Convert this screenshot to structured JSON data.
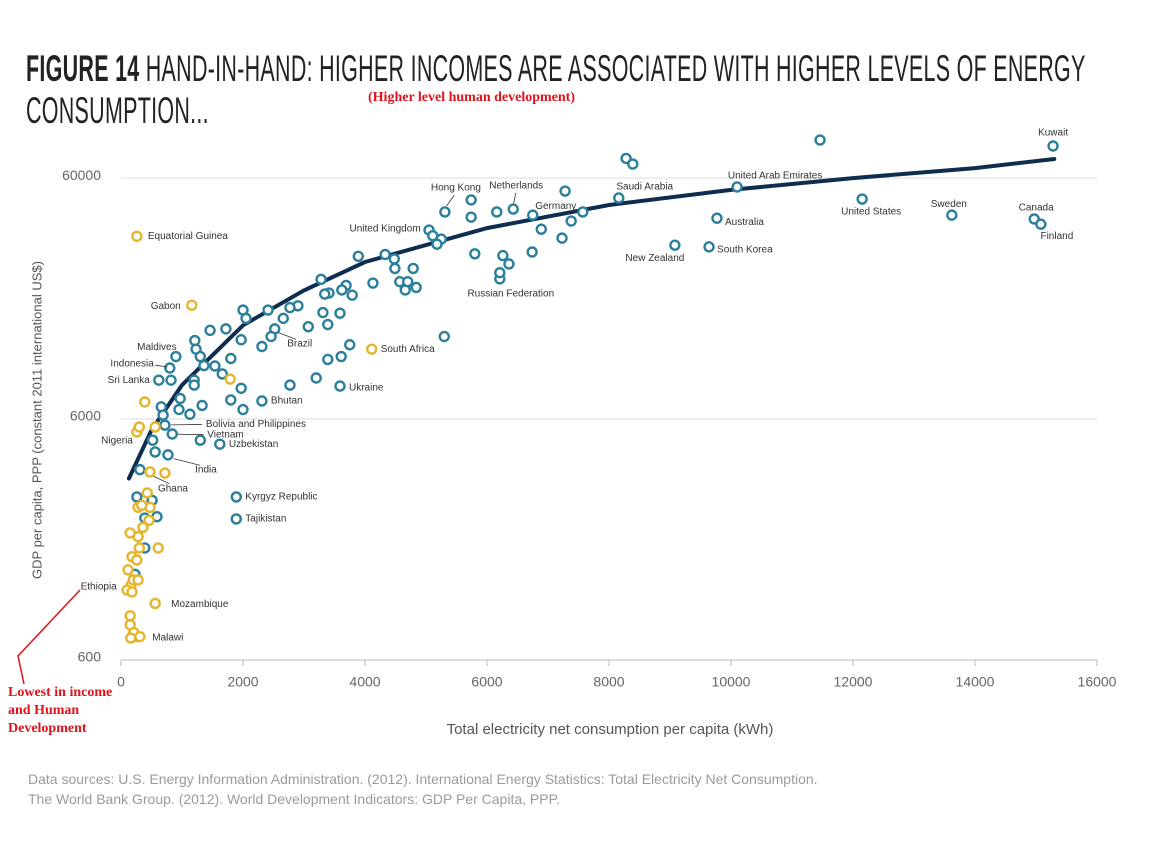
{
  "chart_data": {
    "type": "scatter",
    "figure_label": "FIGURE 14",
    "title": "HAND-IN-HAND: HIGHER INCOMES ARE ASSOCIATED WITH HIGHER LEVELS OF ENERGY CONSUMPTION...",
    "annotations": [
      "(Higher level human development)",
      "Lowest in income and Human Development"
    ],
    "x_label": "Total electricity net consumption per capita (kWh)",
    "y_label": "GDP per capita, PPP (constant 2011 international US$)",
    "sources": [
      "Data sources: U.S. Energy Information Administration. (2012). International Energy Statistics: Total Electricity Net Consumption.",
      "The World Bank Group. (2012). World Development Indicators: GDP Per Capita, PPP."
    ],
    "xlim": [
      0,
      16000
    ],
    "xticks": [
      0,
      2000,
      4000,
      6000,
      8000,
      10000,
      12000,
      14000,
      16000
    ],
    "ylim": [
      600,
      100000
    ],
    "yticks": [
      600,
      6000,
      60000
    ],
    "y_scale": "log",
    "grid": true,
    "series": [
      {
        "color": "#2b7f9b",
        "x": [
          15280,
          10100,
          8160,
          5310,
          6430,
          6750,
          12150,
          13620,
          14970,
          15080,
          9770,
          9080,
          9640,
          5050,
          6210,
          2520,
          900,
          800,
          620,
          3590,
          2310,
          720,
          840,
          1620,
          770,
          1890,
          1890,
          11460,
          8280,
          8390,
          5740,
          5740,
          6160,
          7280,
          7380,
          7570,
          7230,
          6890,
          6740,
          6360,
          6260,
          6210,
          5800,
          5250,
          5110,
          5180,
          4330,
          4480,
          4490,
          4790,
          4840,
          4660,
          4570,
          4700,
          4130,
          3890,
          3690,
          3620,
          3410,
          3280,
          3340,
          3790,
          3310,
          3590,
          3390,
          3070,
          2900,
          2770,
          2660,
          2410,
          2460,
          2310,
          2000,
          2050,
          1970,
          1720,
          1460,
          1210,
          1230,
          1300,
          1360,
          1540,
          1800,
          1660,
          1200,
          820,
          1200,
          970,
          1330,
          950,
          660,
          1970,
          1800,
          2000,
          2770,
          3200,
          3750,
          3390,
          3610,
          5300,
          690,
          1130,
          1300,
          520,
          560,
          310,
          260,
          510,
          390,
          590,
          390,
          230
        ],
        "values": [
          81500,
          55100,
          49600,
          43400,
          44600,
          42100,
          49100,
          42100,
          40600,
          38600,
          40900,
          31600,
          31100,
          36500,
          22900,
          14200,
          10900,
          9770,
          8700,
          8220,
          7130,
          5660,
          5200,
          4720,
          4260,
          2850,
          2310,
          86300,
          72400,
          68600,
          48700,
          41300,
          43400,
          53000,
          39800,
          43400,
          33800,
          36800,
          29600,
          26400,
          28600,
          24300,
          29100,
          33500,
          34600,
          31900,
          28900,
          27700,
          25300,
          25300,
          21100,
          20600,
          22300,
          22300,
          22000,
          28400,
          21500,
          20600,
          20000,
          22800,
          19800,
          19600,
          16600,
          16500,
          14800,
          14500,
          17700,
          17400,
          15700,
          17000,
          13200,
          12000,
          17000,
          15700,
          12800,
          14200,
          14000,
          12700,
          11700,
          10900,
          10000,
          9960,
          10700,
          9230,
          8700,
          8700,
          8300,
          7300,
          6830,
          6570,
          6740,
          8050,
          7200,
          6570,
          8300,
          8880,
          12200,
          10600,
          10900,
          13200,
          6230,
          6280,
          4900,
          4900,
          4380,
          3700,
          2850,
          2760,
          2330,
          2360,
          1750,
          1360
        ],
        "labels": [
          "Kuwait",
          "United Arab Emirates",
          "Saudi Arabia",
          "Hong Kong",
          "Netherlands",
          "Germany",
          "United States",
          "Sweden",
          "Canada",
          "Finland",
          "Australia",
          "New Zealand",
          "South Korea",
          "United Kingdom",
          "Russian Federation",
          "Brazil",
          "Maldives",
          "Indonesia",
          "Sri Lanka",
          "Ukraine",
          "Bhutan",
          "Bolivia and Philippines",
          "Vietnam",
          "Uzbekistan",
          "India",
          "Kyrgyz Republic",
          "Tajikistan",
          null,
          null,
          null,
          null,
          null,
          null,
          null,
          null,
          null,
          null,
          null,
          null,
          null,
          null,
          null,
          null,
          null,
          null,
          null,
          null,
          null,
          null,
          null,
          null,
          null,
          null,
          null,
          null,
          null,
          null,
          null,
          null,
          null,
          null,
          null,
          null,
          null,
          null,
          null,
          null,
          null,
          null,
          null,
          null,
          null,
          null,
          null,
          null,
          null,
          null,
          null,
          null,
          null,
          null,
          null,
          null,
          null,
          null,
          null,
          null,
          null,
          null,
          null,
          null,
          null,
          null,
          null,
          null,
          null,
          null,
          null,
          null,
          null,
          null,
          null,
          null,
          null,
          null,
          null,
          null,
          null,
          null,
          null,
          null,
          null
        ]
      },
      {
        "color": "#e5b52c",
        "x": [
          260,
          1160,
          4110,
          260,
          475,
          160,
          560,
          250,
          390,
          1790,
          720,
          300,
          560,
          430,
          280,
          475,
          360,
          460,
          280,
          150,
          300,
          610,
          180,
          260,
          115,
          200,
          280,
          100,
          180,
          150,
          150,
          210,
          160,
          310,
          340
        ],
        "values": [
          34400,
          17800,
          11700,
          5300,
          3620,
          1220,
          1030,
          750,
          7060,
          8790,
          3580,
          5560,
          5560,
          2960,
          2580,
          2580,
          2130,
          2280,
          1950,
          2020,
          1750,
          1750,
          1610,
          1560,
          1420,
          1290,
          1290,
          1170,
          1150,
          915,
          840,
          780,
          740,
          750,
          2630
        ],
        "labels": [
          "Equatorial Guinea",
          "Gabon",
          "South Africa",
          "Nigeria",
          "Ghana",
          "Ethiopia",
          "Mozambique",
          "Malawi",
          null,
          null,
          null,
          null,
          null,
          null,
          null,
          null,
          null,
          null,
          null,
          null,
          null,
          null,
          null,
          null,
          null,
          null,
          null,
          null,
          null,
          null,
          null,
          null,
          null,
          null,
          null
        ]
      }
    ],
    "trend": {
      "color": "#0f2d4e",
      "x": [
        130,
        500,
        1000,
        2000,
        3000,
        4000,
        6000,
        8000,
        10000,
        12000,
        14000,
        15300
      ],
      "values": [
        3400,
        5400,
        8300,
        14700,
        20500,
        26900,
        37200,
        46400,
        53600,
        60000,
        66000,
        72000
      ]
    }
  }
}
